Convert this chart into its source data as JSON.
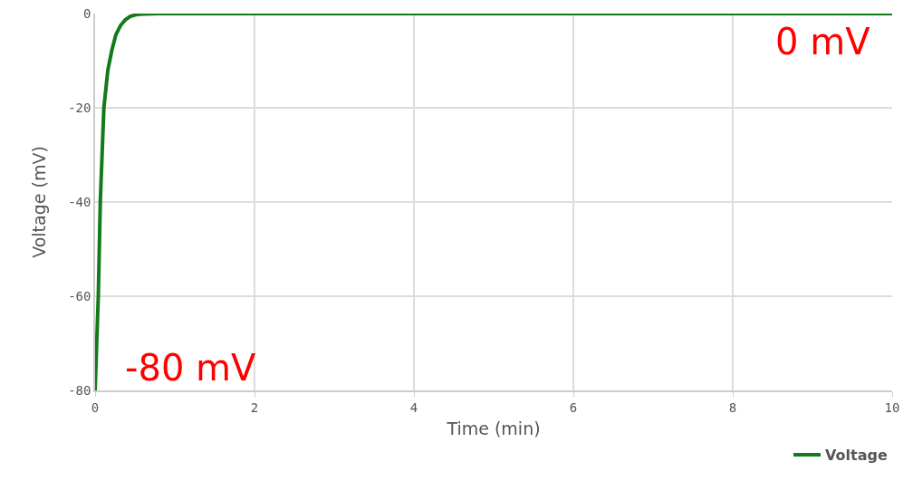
{
  "chart_data": {
    "type": "line",
    "xlabel": "Time (min)",
    "ylabel": "Voltage (mV)",
    "x": [
      0,
      0.04,
      0.065,
      0.11,
      0.16,
      0.21,
      0.26,
      0.32,
      0.38,
      0.44,
      0.52,
      0.6,
      0.8,
      1,
      2,
      4,
      6,
      8,
      10
    ],
    "series": [
      {
        "name": "Voltage",
        "color": "#137a1c",
        "values": [
          -80,
          -60,
          -40,
          -20,
          -12,
          -7.8,
          -4.5,
          -2.5,
          -1.3,
          -0.6,
          -0.2,
          -0.1,
          0,
          0,
          0,
          0,
          0,
          0,
          0
        ]
      }
    ],
    "xlim": [
      0,
      10
    ],
    "xticks": [
      0,
      2,
      4,
      6,
      8,
      10
    ],
    "ylim": [
      -80,
      0
    ],
    "yticks": [
      -80,
      -60,
      -40,
      -20,
      0
    ],
    "grid": true,
    "legend": "bottom right",
    "marker": "none",
    "line_style": "solid",
    "annotations": [
      "0 mV",
      "-80 mV"
    ]
  }
}
